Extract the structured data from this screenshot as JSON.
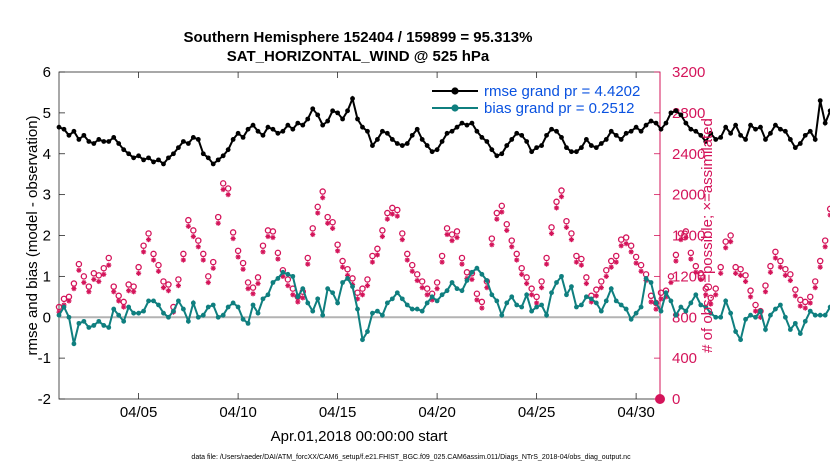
{
  "chart_data": {
    "type": "line",
    "title": "Southern Hemisphere 152404 / 159899 = 95.313%",
    "subtitle": "SAT_HORIZONTAL_WIND @ 525 hPa",
    "xlabel": "Apr.01,2018 00:00:00 start",
    "ylabel": "rmse and bias (model - observation)",
    "y2label": "# of obs: o=possible; ×=assimilated",
    "footnote": "data file: /Users/raeder/DAI/ATM_forcXX/CAM6_setup/f.e21.FHIST_BGC.f09_025.CAM6assim.011/Diags_NTrS_2018-04/obs_diag_output.nc",
    "x_ticks": [
      "04/05",
      "04/10",
      "04/15",
      "04/20",
      "04/25",
      "04/30"
    ],
    "xlim": [
      1.0,
      31.2
    ],
    "ylim": [
      -2,
      6
    ],
    "y_ticks": [
      "-2",
      "-1",
      "0",
      "1",
      "2",
      "3",
      "4",
      "5",
      "6"
    ],
    "y2lim": [
      0,
      3200
    ],
    "y2_ticks": [
      "0",
      "400",
      "800",
      "1200",
      "1600",
      "2000",
      "2400",
      "2800",
      "3200"
    ],
    "legend": [
      "rmse grand pr = 4.4202",
      "bias grand pr = 0.2512"
    ],
    "colors": {
      "rmse": "#000000",
      "bias": "#0f7f7f",
      "obs": "#d4145a",
      "zero_line": "#b3b3b3"
    },
    "x_start_day": 1.0,
    "x_step_days": 0.25,
    "series": [
      {
        "name": "rmse",
        "axis": "left",
        "values": [
          4.65,
          4.6,
          4.45,
          4.55,
          4.35,
          4.45,
          4.3,
          4.25,
          4.35,
          4.3,
          4.3,
          4.4,
          4.25,
          4.1,
          4.0,
          3.9,
          3.95,
          3.85,
          3.9,
          3.8,
          3.85,
          3.75,
          3.9,
          4.0,
          4.15,
          4.3,
          4.25,
          4.4,
          4.35,
          4.0,
          3.9,
          3.75,
          3.85,
          3.95,
          4.1,
          4.35,
          4.5,
          4.4,
          4.6,
          4.7,
          4.55,
          4.45,
          4.65,
          4.6,
          4.5,
          4.55,
          4.7,
          4.6,
          4.75,
          4.7,
          4.85,
          5.1,
          4.95,
          4.7,
          4.8,
          5.05,
          5.0,
          4.85,
          5.05,
          5.35,
          4.85,
          4.65,
          4.55,
          4.2,
          4.35,
          4.55,
          4.5,
          4.35,
          4.25,
          4.2,
          4.25,
          4.45,
          4.6,
          4.35,
          4.2,
          4.05,
          4.1,
          4.3,
          4.5,
          4.55,
          4.65,
          4.75,
          4.7,
          4.75,
          4.55,
          4.4,
          4.3,
          4.1,
          3.95,
          4.0,
          4.2,
          4.35,
          4.5,
          4.45,
          4.3,
          4.05,
          4.15,
          4.2,
          4.45,
          4.6,
          4.55,
          4.4,
          4.15,
          4.05,
          4.05,
          4.15,
          4.35,
          4.2,
          4.15,
          4.25,
          4.35,
          4.55,
          4.45,
          4.35,
          4.5,
          4.55,
          4.65,
          4.55,
          4.7,
          4.8,
          4.75,
          4.6,
          4.75,
          5.0,
          5.05,
          4.95,
          4.75,
          4.6,
          4.55,
          4.45,
          4.3,
          4.5,
          4.35,
          4.4,
          4.65,
          4.5,
          4.7,
          4.45,
          4.35,
          4.7,
          4.6,
          4.65,
          4.35,
          4.5,
          4.7,
          4.6,
          4.55,
          4.35,
          4.15,
          4.25,
          4.45,
          4.55,
          4.35,
          5.3,
          4.75,
          5.05,
          4.85,
          4.65,
          4.45,
          4.75,
          4.4,
          4.45,
          4.55,
          4.4,
          4.75
        ]
      },
      {
        "name": "bias",
        "axis": "left",
        "values": [
          0.05,
          0.25,
          0.0,
          -0.65,
          -0.15,
          -0.1,
          -0.25,
          -0.2,
          -0.1,
          -0.2,
          -0.25,
          0.2,
          0.05,
          -0.1,
          0.25,
          0.1,
          0.1,
          0.15,
          0.4,
          0.4,
          0.3,
          0.1,
          0.0,
          0.15,
          0.4,
          0.2,
          -0.1,
          0.35,
          0.0,
          0.05,
          0.25,
          0.3,
          0.0,
          0.05,
          0.25,
          0.35,
          0.25,
          -0.05,
          -0.15,
          0.3,
          0.1,
          0.45,
          0.55,
          0.85,
          0.95,
          1.1,
          1.05,
          1.0,
          0.5,
          0.7,
          0.35,
          0.15,
          0.45,
          0.05,
          0.7,
          0.6,
          0.35,
          0.85,
          0.95,
          0.75,
          0.2,
          -0.55,
          -0.35,
          0.1,
          0.15,
          0.05,
          0.35,
          0.45,
          0.6,
          0.45,
          0.3,
          0.2,
          0.2,
          0.15,
          0.35,
          0.5,
          0.4,
          0.55,
          0.65,
          0.85,
          0.7,
          0.65,
          0.9,
          1.1,
          1.2,
          1.05,
          0.9,
          0.55,
          0.4,
          0.05,
          0.35,
          0.5,
          0.3,
          0.25,
          0.55,
          0.15,
          0.25,
          0.3,
          0.05,
          0.6,
          0.85,
          1.0,
          0.55,
          0.75,
          0.25,
          0.3,
          0.5,
          0.45,
          0.35,
          0.15,
          0.4,
          0.7,
          0.4,
          0.3,
          0.2,
          -0.05,
          0.1,
          0.25,
          0.95,
          0.85,
          0.35,
          0.15,
          0.6,
          0.4,
          0.05,
          0.25,
          0.15,
          0.35,
          0.55,
          0.3,
          0.25,
          0.1,
          0.0,
          0.0,
          0.4,
          0.1,
          -0.35,
          -0.55,
          -0.05,
          0.05,
          0.0,
          0.15,
          -0.3,
          0.05,
          0.2,
          0.3,
          0.0,
          -0.3,
          -0.15,
          -0.4,
          -0.1,
          0.15,
          0.05,
          0.05,
          0.05,
          0.25,
          0.5,
          0.5,
          0.6,
          0.65,
          0.85,
          0.95,
          1.05,
          1.15
        ]
      },
      {
        "name": "obs possible",
        "axis": "right",
        "marker": "o",
        "values": [
          900,
          980,
          1000,
          1130,
          1320,
          1200,
          1100,
          1230,
          1210,
          1280,
          1380,
          1100,
          1010,
          950,
          1120,
          1100,
          1290,
          1500,
          1620,
          1420,
          1310,
          1150,
          1120,
          900,
          1170,
          1420,
          1750,
          1650,
          1550,
          1420,
          1200,
          1340,
          1780,
          2110,
          2060,
          1630,
          1450,
          1330,
          1140,
          1090,
          1190,
          1500,
          1650,
          1640,
          1430,
          1260,
          1170,
          1080,
          1000,
          1050,
          1380,
          1670,
          1880,
          2030,
          1780,
          1730,
          1510,
          1350,
          1270,
          1180,
          1040,
          1080,
          1170,
          1400,
          1470,
          1650,
          1820,
          1870,
          1850,
          1620,
          1420,
          1310,
          1220,
          1150,
          1080,
          1030,
          1140,
          1400,
          1670,
          1610,
          1640,
          1380,
          1240,
          1230,
          1030,
          950,
          1150,
          1570,
          1820,
          1890,
          1710,
          1550,
          1420,
          1280,
          1190,
          1080,
          1000,
          1150,
          1380,
          1680,
          1930,
          2040,
          1740,
          1620,
          1400,
          1370,
          1190,
          1010,
          1070,
          1150,
          1260,
          1350,
          1400,
          1560,
          1580,
          1500,
          1390,
          1310,
          1220,
          1010,
          940,
          1040,
          1060,
          1200,
          1410,
          1620,
          1640,
          1430,
          1300,
          1230,
          1080,
          990,
          1080,
          1290,
          1540,
          1600,
          1290,
          1270,
          1210,
          1060,
          920,
          860,
          1110,
          1300,
          1440,
          1350,
          1270,
          1220,
          1070,
          970,
          950,
          1000,
          1150,
          1350,
          1550,
          1860,
          1780,
          1580,
          1490,
          1320,
          1290
        ]
      },
      {
        "name": "obs assimilated",
        "axis": "right",
        "marker": "x",
        "values": [
          850,
          920,
          960,
          1080,
          1260,
          1140,
          1050,
          1170,
          1150,
          1220,
          1310,
          1050,
          960,
          900,
          1060,
          1050,
          1230,
          1440,
          1560,
          1360,
          1250,
          1090,
          1060,
          850,
          1110,
          1360,
          1690,
          1590,
          1490,
          1360,
          1140,
          1280,
          1720,
          2050,
          2000,
          1570,
          1390,
          1270,
          1080,
          1030,
          1130,
          1440,
          1590,
          1580,
          1370,
          1200,
          1110,
          1020,
          950,
          990,
          1320,
          1610,
          1820,
          1970,
          1720,
          1670,
          1450,
          1290,
          1210,
          1120,
          980,
          1020,
          1110,
          1340,
          1410,
          1590,
          1760,
          1810,
          1790,
          1560,
          1360,
          1250,
          1160,
          1090,
          1020,
          970,
          1080,
          1340,
          1610,
          1550,
          1580,
          1320,
          1180,
          1170,
          970,
          890,
          1090,
          1510,
          1760,
          1830,
          1650,
          1490,
          1360,
          1220,
          1130,
          1020,
          940,
          1090,
          1320,
          1620,
          1870,
          1980,
          1680,
          1560,
          1340,
          1310,
          1130,
          950,
          1010,
          1090,
          1200,
          1290,
          1340,
          1500,
          1520,
          1440,
          1330,
          1250,
          1160,
          950,
          880,
          980,
          1000,
          1140,
          1350,
          1560,
          1580,
          1370,
          1240,
          1170,
          1020,
          930,
          1020,
          1230,
          1480,
          1540,
          1230,
          1210,
          1150,
          1000,
          860,
          800,
          1050,
          1240,
          1380,
          1290,
          1210,
          1160,
          1010,
          910,
          890,
          940,
          1090,
          1290,
          1490,
          1800,
          1720,
          1520,
          1430,
          1260,
          1230
        ]
      }
    ],
    "final_obs_value": 0
  }
}
